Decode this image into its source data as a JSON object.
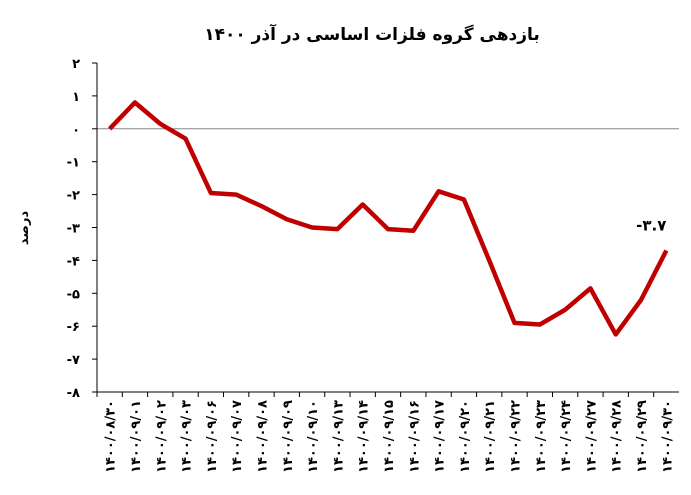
{
  "chart_data": {
    "type": "line",
    "title": "بازدهی گروه فلزات اساسی در آذر ۱۴۰۰",
    "y_label": "درصد",
    "categories": [
      "۱۴۰۰/۰۸/۳۰",
      "۱۴۰۰/۰۹/۰۱",
      "۱۴۰۰/۰۹/۰۲",
      "۱۴۰۰/۰۹/۰۳",
      "۱۴۰۰/۰۹/۰۶",
      "۱۴۰۰/۰۹/۰۷",
      "۱۴۰۰/۰۹/۰۸",
      "۱۴۰۰/۰۹/۰۹",
      "۱۴۰۰/۰۹/۱۰",
      "۱۴۰۰/۰۹/۱۳",
      "۱۴۰۰/۰۹/۱۴",
      "۱۴۰۰/۰۹/۱۵",
      "۱۴۰۰/۰۹/۱۶",
      "۱۴۰۰/۰۹/۱۷",
      "۱۴۰۰/۰۹/۲۰",
      "۱۴۰۰/۰۹/۲۱",
      "۱۴۰۰/۰۹/۲۲",
      "۱۴۰۰/۰۹/۲۳",
      "۱۴۰۰/۰۹/۲۴",
      "۱۴۰۰/۰۹/۲۷",
      "۱۴۰۰/۰۹/۲۸",
      "۱۴۰۰/۰۹/۲۹",
      "۱۴۰۰/۰۹/۳۰"
    ],
    "values": [
      0,
      0.8,
      0.15,
      -0.3,
      -1.95,
      -2.0,
      -2.35,
      -2.75,
      -3.0,
      -3.05,
      -2.3,
      -3.05,
      -3.1,
      -1.9,
      -2.15,
      -4.0,
      -5.9,
      -5.95,
      -5.5,
      -4.85,
      -6.25,
      -5.2,
      -3.7
    ],
    "value_labels": [
      null,
      null,
      null,
      null,
      null,
      null,
      null,
      null,
      null,
      null,
      null,
      null,
      null,
      null,
      null,
      null,
      null,
      null,
      null,
      null,
      null,
      null,
      "-۳.۷"
    ],
    "color": "#c00000",
    "ylim": [
      -8,
      2
    ],
    "yticks": [
      {
        "value": 2,
        "label": "۲"
      },
      {
        "value": 1,
        "label": "۱"
      },
      {
        "value": 0,
        "label": "۰"
      },
      {
        "value": -1,
        "label": "-۱"
      },
      {
        "value": -2,
        "label": "-۲"
      },
      {
        "value": -3,
        "label": "-۳"
      },
      {
        "value": -4,
        "label": "-۴"
      },
      {
        "value": -5,
        "label": "-۵"
      },
      {
        "value": -6,
        "label": "-۶"
      },
      {
        "value": -7,
        "label": "-۷"
      },
      {
        "value": -8,
        "label": "-۸"
      }
    ]
  }
}
